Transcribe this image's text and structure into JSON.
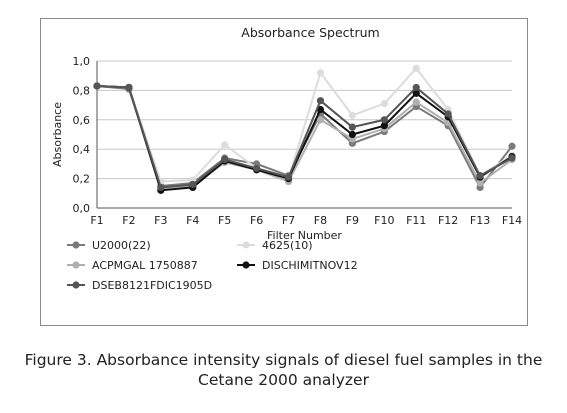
{
  "caption": {
    "line1": "Figure 3.  Absorbance intensity signals of diesel fuel samples in the",
    "line2": "Cetane 2000 analyzer"
  },
  "chart_data": {
    "type": "line",
    "title": "Absorbance Spectrum",
    "xlabel": "Filter Number",
    "ylabel": "Absorbance",
    "ylim": [
      0,
      1
    ],
    "yticks": [
      "0,0",
      "0,2",
      "0,4",
      "0,6",
      "0,8",
      "1,0"
    ],
    "categories": [
      "F1",
      "F2",
      "F3",
      "F4",
      "F5",
      "F6",
      "F7",
      "F8",
      "F9",
      "F10",
      "F11",
      "F12",
      "F13",
      "F14"
    ],
    "grid": "horizontal",
    "legend_position": "bottom",
    "series": [
      {
        "name": "U2000(22)",
        "color": "#7a7a7a",
        "values": [
          0.83,
          0.81,
          0.15,
          0.17,
          0.34,
          0.3,
          0.22,
          0.64,
          0.44,
          0.52,
          0.69,
          0.56,
          0.14,
          0.42
        ]
      },
      {
        "name": "4625(10)",
        "color": "#dcdcdc",
        "values": [
          0.83,
          0.82,
          0.18,
          0.19,
          0.43,
          0.27,
          0.2,
          0.92,
          0.63,
          0.71,
          0.95,
          0.67,
          0.22,
          0.36
        ]
      },
      {
        "name": "ACPMGAL 1750887",
        "color": "#b0b0b0",
        "values": [
          0.83,
          0.82,
          0.13,
          0.15,
          0.31,
          0.26,
          0.18,
          0.6,
          0.47,
          0.54,
          0.72,
          0.58,
          0.17,
          0.33
        ]
      },
      {
        "name": "DISCHIMITNOV12",
        "color": "#111111",
        "values": [
          0.83,
          0.82,
          0.12,
          0.14,
          0.32,
          0.26,
          0.2,
          0.67,
          0.5,
          0.56,
          0.78,
          0.62,
          0.21,
          0.35
        ]
      },
      {
        "name": "DSEB8121FDIC1905D",
        "color": "#555555",
        "values": [
          0.83,
          0.82,
          0.14,
          0.16,
          0.33,
          0.27,
          0.21,
          0.73,
          0.55,
          0.6,
          0.82,
          0.64,
          0.22,
          0.34
        ]
      }
    ]
  }
}
